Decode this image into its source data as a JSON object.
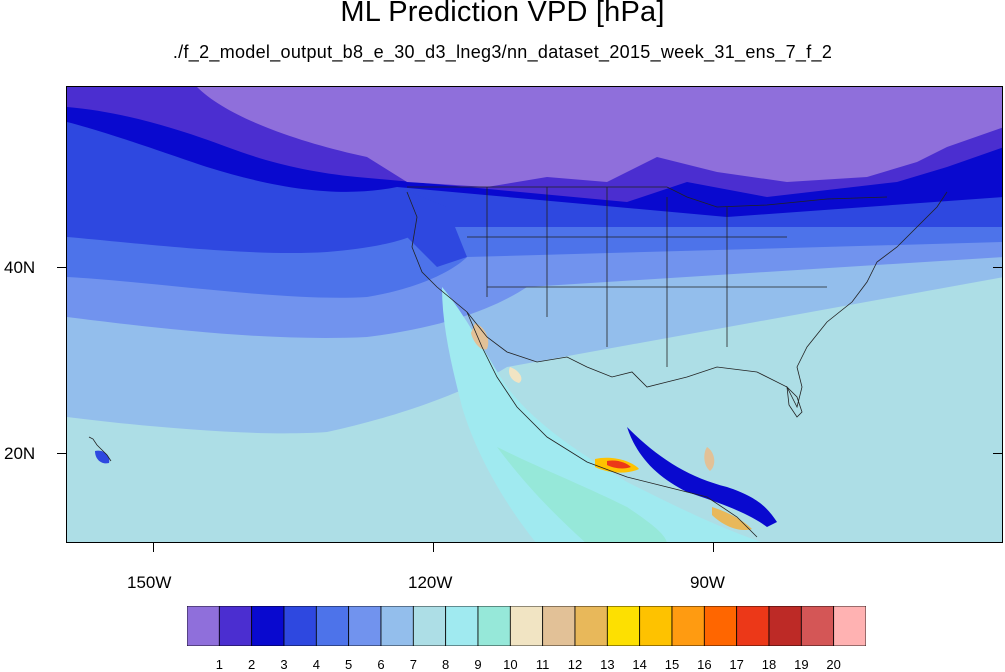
{
  "title": "ML Prediction VPD [hPa]",
  "subtitle": "./f_2_model_output_b8_e_30_d3_lneg3/nn_dataset_2015_week_31_ens_7_f_2",
  "map": {
    "lon_labels": [
      "150W",
      "120W",
      "90W"
    ],
    "lat_labels": [
      "40N",
      "20N"
    ]
  },
  "colorbar": {
    "colors": [
      "#8F6FDB",
      "#4B2ED0",
      "#0909CF",
      "#2E48E0",
      "#4D73EA",
      "#7193EE",
      "#93BEEC",
      "#ADDEE6",
      "#A0EAF0",
      "#96E8D9",
      "#F1E4C3",
      "#E2C197",
      "#E8B85A",
      "#FDE001",
      "#FEC200",
      "#FF9B11",
      "#FF6600",
      "#EC3818",
      "#BD2A26",
      "#D45656",
      "#FFB2B2"
    ],
    "labels": [
      "1",
      "2",
      "3",
      "4",
      "5",
      "6",
      "7",
      "8",
      "9",
      "10",
      "11",
      "12",
      "13",
      "14",
      "15",
      "16",
      "17",
      "18",
      "19",
      "20"
    ]
  }
}
